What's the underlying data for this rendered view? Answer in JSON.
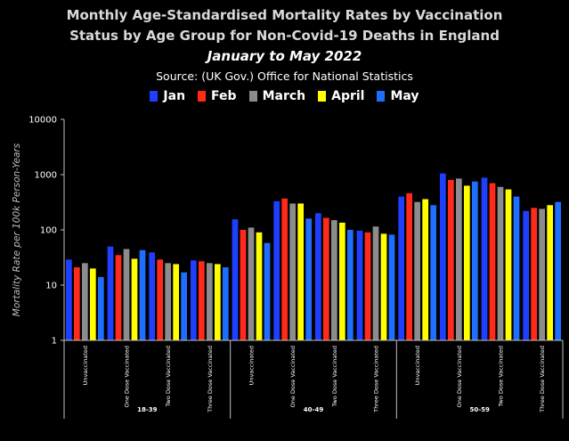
{
  "chart_data": {
    "type": "bar",
    "title_line1": "Monthly Age-Standardised Mortality Rates by Vaccination",
    "title_line2": "Status by Age Group for Non-Covid-19 Deaths in England",
    "subtitle": "January to May 2022",
    "source": "Source: (UK Gov.) Office for National Statistics",
    "ylabel": "Mortality Rate per 100k Person-Years",
    "yscale": "log",
    "ylim": [
      1,
      10000
    ],
    "yticks": [
      "1",
      "10",
      "100",
      "1000",
      "10000"
    ],
    "legend_position": "top-center",
    "groups": [
      {
        "label": "18-39",
        "categories": [
          "Unvaccinated",
          "One Dose Vaccinated",
          "Two Dose Vaccinated",
          "Three Dose Vaccinated"
        ]
      },
      {
        "label": "40-49",
        "categories": [
          "Unvaccinated",
          "One Dose Vaccinated",
          "Two Dose Vaccinated",
          "Three Dose Vaccinated"
        ]
      },
      {
        "label": "50-59",
        "categories": [
          "Unvaccinated",
          "One Dose Vaccinated",
          "Two Dose Vaccinated",
          "Three Dose Vaccinated"
        ]
      }
    ],
    "series": [
      {
        "name": "Jan",
        "color": "#1f3fff",
        "values": [
          29,
          50,
          39,
          28,
          155,
          330,
          200,
          97,
          400,
          1050,
          880,
          220
        ]
      },
      {
        "name": "Feb",
        "color": "#ff2a1a",
        "values": [
          21,
          35,
          29,
          27,
          100,
          370,
          165,
          90,
          460,
          800,
          700,
          250
        ]
      },
      {
        "name": "March",
        "color": "#8c8c8c",
        "values": [
          25,
          45,
          25,
          25,
          110,
          300,
          150,
          115,
          320,
          850,
          600,
          240
        ]
      },
      {
        "name": "April",
        "color": "#ffff00",
        "values": [
          20,
          30,
          24,
          24,
          90,
          300,
          135,
          85,
          360,
          630,
          540,
          280
        ]
      },
      {
        "name": "May",
        "color": "#1e6fff",
        "values": [
          14,
          43,
          17,
          21,
          58,
          160,
          100,
          82,
          280,
          750,
          400,
          320
        ]
      }
    ]
  }
}
